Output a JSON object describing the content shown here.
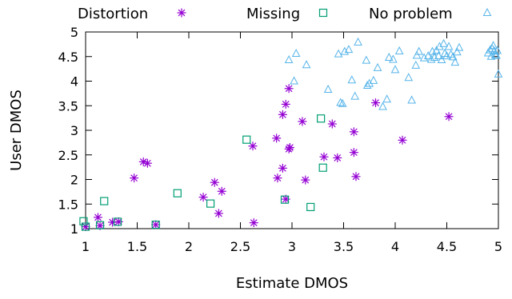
{
  "chart_data": {
    "type": "scatter",
    "xlabel": "Estimate DMOS",
    "ylabel": "User DMOS",
    "xlim": [
      1,
      5
    ],
    "ylim": [
      1,
      5
    ],
    "x_ticks": [
      "1",
      "1.5",
      "2",
      "2.5",
      "3",
      "3.5",
      "4",
      "4.5",
      "5"
    ],
    "y_ticks": [
      "1",
      "1.5",
      "2",
      "2.5",
      "3",
      "3.5",
      "4",
      "4.5",
      "5"
    ],
    "grid": false,
    "legend_position": "top",
    "series": [
      {
        "name": "Distortion",
        "marker": "asterisk",
        "color": "#9400d3",
        "points": [
          [
            1.0,
            1.04
          ],
          [
            1.12,
            1.23
          ],
          [
            1.14,
            1.06
          ],
          [
            1.26,
            1.13
          ],
          [
            1.32,
            1.14
          ],
          [
            1.47,
            2.03
          ],
          [
            1.56,
            2.36
          ],
          [
            1.6,
            2.33
          ],
          [
            1.68,
            1.08
          ],
          [
            2.14,
            1.64
          ],
          [
            2.25,
            1.94
          ],
          [
            2.29,
            1.31
          ],
          [
            2.32,
            1.76
          ],
          [
            2.62,
            2.68
          ],
          [
            2.63,
            1.12
          ],
          [
            2.85,
            2.84
          ],
          [
            2.86,
            2.03
          ],
          [
            2.91,
            3.32
          ],
          [
            2.91,
            2.23
          ],
          [
            2.94,
            3.53
          ],
          [
            2.94,
            1.6
          ],
          [
            2.97,
            3.85
          ],
          [
            2.97,
            2.62
          ],
          [
            2.98,
            2.65
          ],
          [
            3.1,
            3.18
          ],
          [
            3.13,
            1.99
          ],
          [
            3.31,
            2.46
          ],
          [
            3.39,
            3.13
          ],
          [
            3.44,
            2.44
          ],
          [
            3.6,
            2.97
          ],
          [
            3.6,
            2.55
          ],
          [
            3.62,
            2.06
          ],
          [
            3.81,
            3.56
          ],
          [
            4.07,
            2.8
          ],
          [
            4.52,
            3.28
          ]
        ]
      },
      {
        "name": "Missing",
        "marker": "square",
        "color": "#009e73",
        "points": [
          [
            0.98,
            1.15
          ],
          [
            1.0,
            1.04
          ],
          [
            1.14,
            1.07
          ],
          [
            1.18,
            1.56
          ],
          [
            1.31,
            1.14
          ],
          [
            1.68,
            1.08
          ],
          [
            1.89,
            1.72
          ],
          [
            2.21,
            1.51
          ],
          [
            2.56,
            2.81
          ],
          [
            2.93,
            1.59
          ],
          [
            3.18,
            1.44
          ],
          [
            3.28,
            3.24
          ],
          [
            3.3,
            2.24
          ]
        ]
      },
      {
        "name": "No problem",
        "marker": "triangle",
        "color": "#56b4e9",
        "points": [
          [
            2.97,
            4.43
          ],
          [
            3.02,
            4.0
          ],
          [
            3.04,
            4.56
          ],
          [
            3.14,
            4.33
          ],
          [
            3.35,
            3.83
          ],
          [
            3.45,
            4.55
          ],
          [
            3.47,
            3.56
          ],
          [
            3.49,
            3.54
          ],
          [
            3.51,
            4.6
          ],
          [
            3.55,
            4.64
          ],
          [
            3.58,
            4.02
          ],
          [
            3.61,
            3.69
          ],
          [
            3.64,
            4.79
          ],
          [
            3.72,
            4.42
          ],
          [
            3.73,
            3.91
          ],
          [
            3.75,
            3.95
          ],
          [
            3.79,
            4.01
          ],
          [
            3.83,
            4.27
          ],
          [
            3.88,
            3.48
          ],
          [
            3.92,
            3.63
          ],
          [
            3.94,
            4.48
          ],
          [
            3.98,
            4.44
          ],
          [
            4.0,
            4.23
          ],
          [
            4.04,
            4.61
          ],
          [
            4.13,
            4.07
          ],
          [
            4.16,
            3.61
          ],
          [
            4.2,
            4.32
          ],
          [
            4.21,
            4.52
          ],
          [
            4.23,
            4.6
          ],
          [
            4.28,
            4.47
          ],
          [
            4.32,
            4.51
          ],
          [
            4.35,
            4.44
          ],
          [
            4.36,
            4.6
          ],
          [
            4.38,
            4.48
          ],
          [
            4.4,
            4.62
          ],
          [
            4.42,
            4.51
          ],
          [
            4.43,
            4.7
          ],
          [
            4.45,
            4.43
          ],
          [
            4.47,
            4.76
          ],
          [
            4.48,
            4.56
          ],
          [
            4.5,
            4.51
          ],
          [
            4.52,
            4.7
          ],
          [
            4.54,
            4.54
          ],
          [
            4.56,
            4.49
          ],
          [
            4.58,
            4.38
          ],
          [
            4.6,
            4.59
          ],
          [
            4.62,
            4.68
          ],
          [
            4.9,
            4.57
          ],
          [
            4.92,
            4.63
          ],
          [
            4.93,
            4.5
          ],
          [
            4.94,
            4.66
          ],
          [
            4.95,
            4.72
          ],
          [
            4.96,
            4.61
          ],
          [
            4.97,
            4.53
          ],
          [
            4.98,
            4.52
          ],
          [
            4.99,
            4.62
          ],
          [
            5.0,
            4.14
          ]
        ]
      }
    ]
  }
}
